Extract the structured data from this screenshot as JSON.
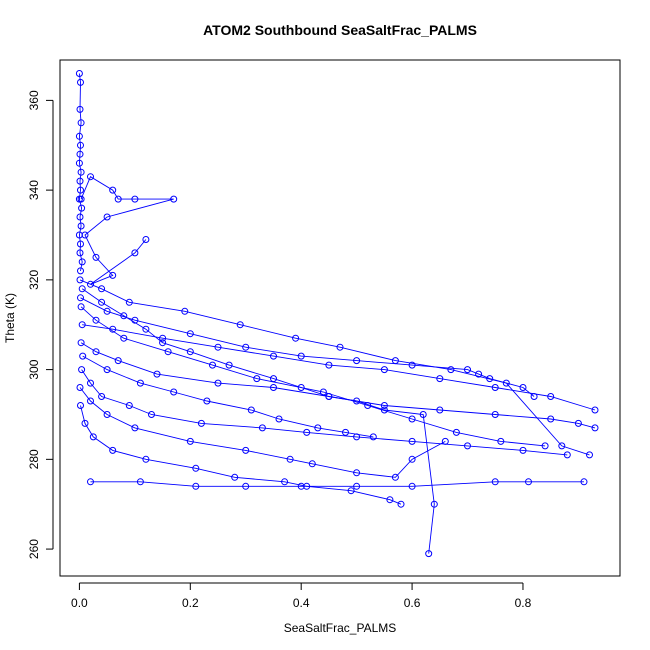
{
  "chart_data": {
    "type": "scatter",
    "title": "ATOM2 Southbound SeaSaltFrac_PALMS",
    "xlabel": "SeaSaltFrac_PALMS",
    "ylabel": "Theta (K)",
    "xlim": [
      -0.035,
      0.975
    ],
    "ylim": [
      254,
      369
    ],
    "x_ticks": [
      "0.0",
      "0.2",
      "0.4",
      "0.6",
      "0.8"
    ],
    "y_ticks": [
      "260",
      "280",
      "300",
      "320",
      "340",
      "360"
    ],
    "grid": false,
    "legend": "none",
    "marker": "open-circle",
    "connect_points": true,
    "color": "#0000ff",
    "series": [
      {
        "x": [
          0.0,
          0.002,
          0.001,
          0.003,
          0.0,
          0.002,
          0.001,
          0.0,
          0.003,
          0.001,
          0.002,
          0.0,
          0.004,
          0.001,
          0.003,
          0.0,
          0.002,
          0.001,
          0.005,
          0.002
        ],
        "y": [
          366,
          364,
          358,
          355,
          352,
          350,
          348,
          346,
          344,
          342,
          340,
          338,
          336,
          334,
          332,
          330,
          328,
          326,
          324,
          322
        ]
      },
      {
        "x": [
          0.003,
          0.02,
          0.06,
          0.07,
          0.1,
          0.17,
          0.05,
          0.01,
          0.03,
          0.06,
          0.02,
          0.1,
          0.12
        ],
        "y": [
          338,
          343,
          340,
          338,
          338,
          338,
          334,
          330,
          325,
          321,
          319,
          326,
          329
        ]
      },
      {
        "x": [
          0.005,
          0.04,
          0.08,
          0.12,
          0.15,
          0.2,
          0.27,
          0.35,
          0.4,
          0.45,
          0.5,
          0.55,
          0.62,
          0.64,
          0.63
        ],
        "y": [
          318,
          315,
          312,
          309,
          306,
          304,
          301,
          298,
          296,
          294,
          293,
          291,
          290,
          270,
          259
        ]
      },
      {
        "x": [
          0.002,
          0.05,
          0.1,
          0.2,
          0.3,
          0.4,
          0.5,
          0.6,
          0.7,
          0.72,
          0.74,
          0.8,
          0.82
        ],
        "y": [
          316,
          313,
          311,
          308,
          305,
          303,
          302,
          301,
          300,
          299,
          298,
          296,
          294
        ]
      },
      {
        "x": [
          0.003,
          0.03,
          0.07,
          0.14,
          0.25,
          0.35,
          0.45,
          0.55,
          0.65,
          0.75,
          0.85,
          0.9,
          0.93
        ],
        "y": [
          306,
          304,
          302,
          299,
          297,
          296,
          294,
          292,
          291,
          290,
          289,
          288,
          287
        ]
      },
      {
        "x": [
          0.004,
          0.02,
          0.04,
          0.09,
          0.13,
          0.22,
          0.33,
          0.41,
          0.5,
          0.6,
          0.7,
          0.8,
          0.88
        ],
        "y": [
          300,
          297,
          294,
          292,
          290,
          288,
          287,
          286,
          285,
          284,
          283,
          282,
          281
        ]
      },
      {
        "x": [
          0.001,
          0.02,
          0.05,
          0.1,
          0.2,
          0.3,
          0.38,
          0.42,
          0.5,
          0.57,
          0.6,
          0.66
        ],
        "y": [
          296,
          293,
          290,
          287,
          284,
          282,
          280,
          279,
          277,
          276,
          280,
          284
        ]
      },
      {
        "x": [
          0.002,
          0.01,
          0.025,
          0.06,
          0.12,
          0.21,
          0.28,
          0.37,
          0.41,
          0.49,
          0.56,
          0.58
        ],
        "y": [
          292,
          288,
          285,
          282,
          280,
          278,
          276,
          275,
          274,
          273,
          271,
          270
        ]
      },
      {
        "x": [
          0.02,
          0.11,
          0.21,
          0.3,
          0.4,
          0.5,
          0.6,
          0.75,
          0.81,
          0.91
        ],
        "y": [
          275,
          275,
          274,
          274,
          274,
          274,
          274,
          275,
          275,
          275
        ]
      },
      {
        "x": [
          0.005,
          0.06,
          0.15,
          0.25,
          0.35,
          0.45,
          0.55,
          0.65,
          0.75,
          0.85,
          0.93
        ],
        "y": [
          310,
          309,
          307,
          305,
          303,
          301,
          300,
          298,
          296,
          294,
          291
        ]
      },
      {
        "x": [
          0.003,
          0.03,
          0.08,
          0.16,
          0.24,
          0.32,
          0.44,
          0.52,
          0.6,
          0.68,
          0.76,
          0.84
        ],
        "y": [
          314,
          311,
          307,
          304,
          301,
          298,
          295,
          292,
          289,
          286,
          284,
          283
        ]
      },
      {
        "x": [
          0.001,
          0.04,
          0.09,
          0.19,
          0.29,
          0.39,
          0.47,
          0.57,
          0.67,
          0.77,
          0.87,
          0.92
        ],
        "y": [
          320,
          318,
          315,
          313,
          310,
          307,
          305,
          302,
          300,
          297,
          283,
          281
        ]
      },
      {
        "x": [
          0.006,
          0.05,
          0.11,
          0.17,
          0.23,
          0.31,
          0.36,
          0.43,
          0.48,
          0.53
        ],
        "y": [
          303,
          300,
          297,
          295,
          293,
          291,
          289,
          287,
          286,
          285
        ]
      }
    ]
  }
}
